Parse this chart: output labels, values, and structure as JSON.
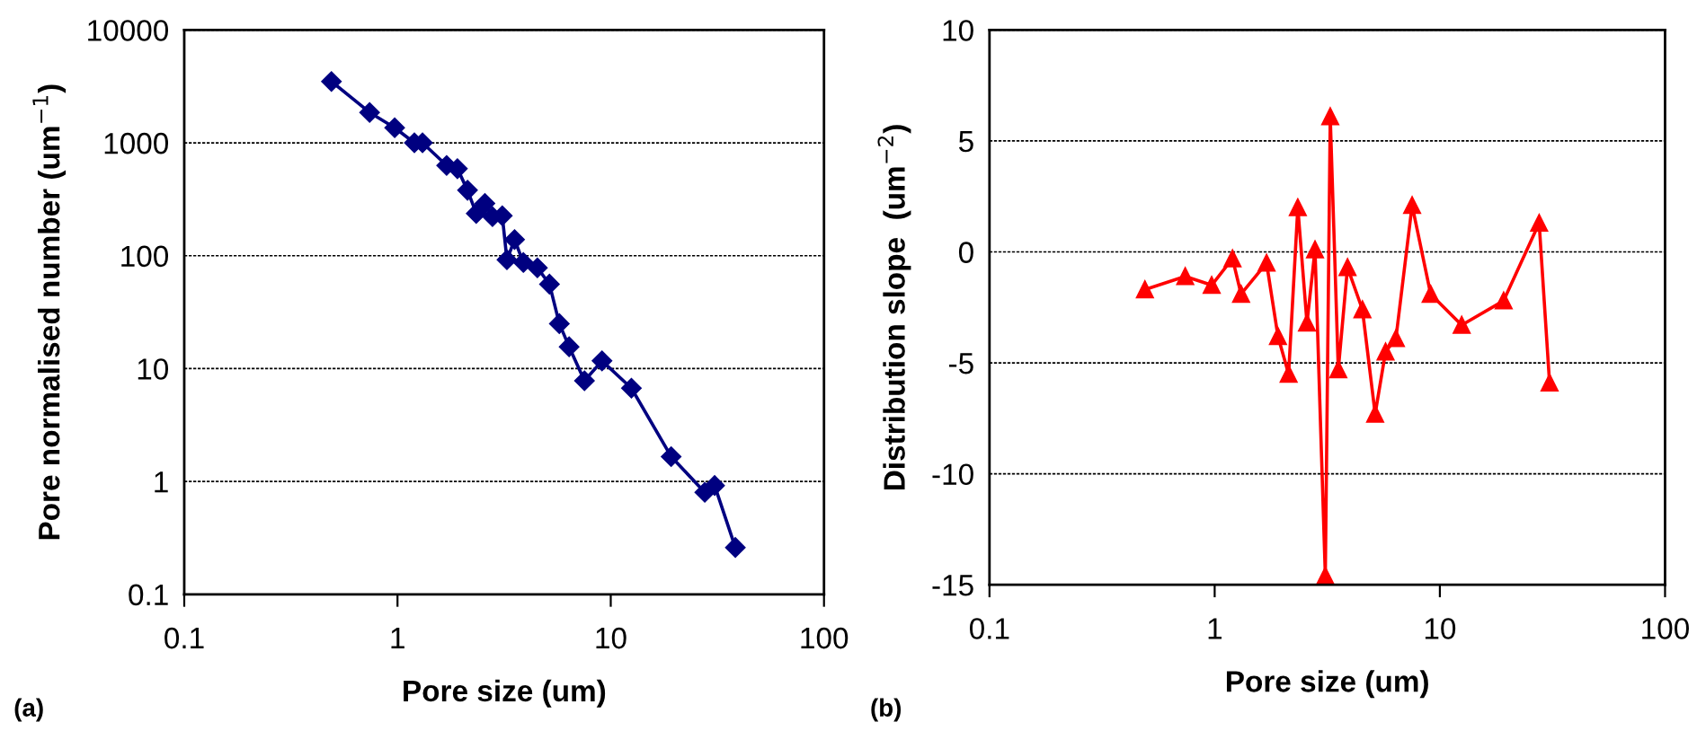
{
  "chart_data": [
    {
      "type": "line",
      "xlabel": "Pore size (um)",
      "ylabel": "Pore normalised number (um$^{−1}$)",
      "annotations": [
        "(a)"
      ],
      "log": "xy",
      "grid": "y",
      "marker": "diamond",
      "line_style": "solid",
      "xlim": [
        0.1,
        100
      ],
      "xticks": [
        0.1,
        1,
        10,
        100
      ],
      "ylim": [
        0.1,
        10000
      ],
      "yticks": [
        0.1,
        1,
        10,
        100,
        1000,
        10000
      ],
      "series": [
        {
          "color": "#000080",
          "x": [
            0.49,
            0.74,
            0.97,
            1.2,
            1.31,
            1.7,
            1.91,
            2.13,
            2.34,
            2.57,
            2.79,
            3.1,
            3.26,
            3.54,
            3.89,
            4.53,
            5.16,
            5.74,
            6.38,
            7.53,
            9.1,
            12.5,
            19.2,
            27.6,
            30.7,
            38.4
          ],
          "values": [
            3500,
            1860,
            1360,
            1000,
            1000,
            630,
            590,
            380,
            237,
            290,
            222,
            226,
            92,
            139,
            87,
            78,
            56,
            25,
            15.6,
            7.8,
            11.7,
            6.7,
            1.66,
            0.8,
            0.92,
            0.26
          ]
        }
      ]
    },
    {
      "type": "line",
      "xlabel": "Pore size (um)",
      "ylabel": "Distribution slope  (um$^{−2}$)",
      "annotations": [
        "(b)"
      ],
      "log": "x",
      "grid": "y",
      "marker": "triangle",
      "line_style": "solid",
      "xlim": [
        0.1,
        100
      ],
      "xticks": [
        0.1,
        1,
        10,
        100
      ],
      "ylim": [
        -15,
        10
      ],
      "yticks": [
        -15,
        -10,
        -5,
        0,
        5,
        10
      ],
      "series": [
        {
          "color": "#ff0000",
          "x": [
            0.49,
            0.74,
            0.97,
            1.2,
            1.31,
            1.7,
            1.91,
            2.13,
            2.34,
            2.57,
            2.79,
            3.1,
            3.26,
            3.54,
            3.89,
            4.53,
            5.16,
            5.74,
            6.38,
            7.53,
            9.1,
            12.5,
            19.2,
            27.6,
            30.7
          ],
          "values": [
            -1.7,
            -1.1,
            -1.5,
            -0.3,
            -1.9,
            -0.5,
            -3.8,
            -5.5,
            2.0,
            -3.2,
            0.1,
            -14.6,
            6.1,
            -5.3,
            -0.7,
            -2.6,
            -7.3,
            -4.5,
            -3.9,
            2.1,
            -1.9,
            -3.3,
            -2.2,
            1.3,
            -5.9
          ]
        }
      ]
    }
  ]
}
